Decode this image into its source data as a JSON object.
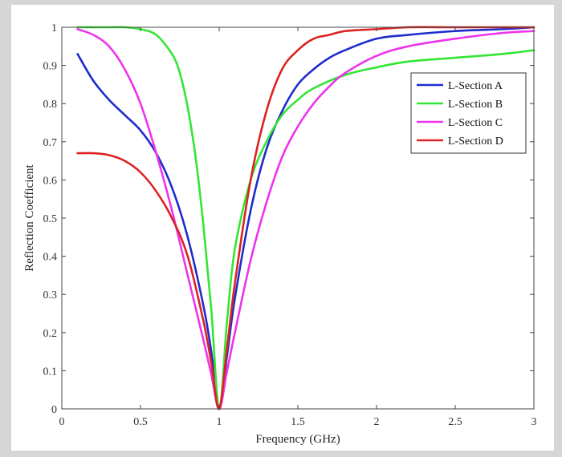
{
  "chart_data": {
    "type": "line",
    "xlabel": "Frequency (GHz)",
    "ylabel": "Reflection Coefficient",
    "xlim": [
      0,
      3
    ],
    "ylim": [
      0,
      1
    ],
    "xticks": [
      0,
      0.5,
      1,
      1.5,
      2,
      2.5,
      3
    ],
    "xtick_labels": [
      "0",
      "0.5",
      "1",
      "1.5",
      "2",
      "2.5",
      "3"
    ],
    "yticks": [
      0,
      0.1,
      0.2,
      0.3,
      0.4,
      0.5,
      0.6,
      0.7,
      0.8,
      0.9,
      1
    ],
    "ytick_labels": [
      "0",
      "0.1",
      "0.2",
      "0.3",
      "0.4",
      "0.5",
      "0.6",
      "0.7",
      "0.8",
      "0.9",
      "1"
    ],
    "grid": false,
    "legend_position": "top-right",
    "series": [
      {
        "name": "L-Section A",
        "color": "#1f2ccc",
        "x": [
          0.1,
          0.2,
          0.3,
          0.4,
          0.5,
          0.6,
          0.7,
          0.8,
          0.9,
          0.95,
          1.0,
          1.05,
          1.1,
          1.2,
          1.3,
          1.4,
          1.5,
          1.6,
          1.7,
          1.8,
          2.0,
          2.2,
          2.5,
          2.8,
          3.0
        ],
        "y": [
          0.93,
          0.86,
          0.81,
          0.77,
          0.73,
          0.67,
          0.58,
          0.45,
          0.27,
          0.15,
          0.0,
          0.14,
          0.29,
          0.52,
          0.68,
          0.78,
          0.85,
          0.89,
          0.92,
          0.94,
          0.97,
          0.98,
          0.99,
          0.995,
          1.0
        ]
      },
      {
        "name": "L-Section B",
        "color": "#33e633",
        "x": [
          0.1,
          0.2,
          0.3,
          0.4,
          0.5,
          0.6,
          0.7,
          0.75,
          0.8,
          0.85,
          0.9,
          0.95,
          1.0,
          1.05,
          1.1,
          1.2,
          1.3,
          1.4,
          1.5,
          1.6,
          1.8,
          2.0,
          2.2,
          2.5,
          2.8,
          3.0
        ],
        "y": [
          1.0,
          1.0,
          1.0,
          1.0,
          0.995,
          0.98,
          0.93,
          0.88,
          0.79,
          0.66,
          0.48,
          0.26,
          0.0,
          0.23,
          0.42,
          0.6,
          0.7,
          0.77,
          0.81,
          0.84,
          0.875,
          0.895,
          0.91,
          0.92,
          0.93,
          0.94
        ]
      },
      {
        "name": "L-Section C",
        "color": "#ee33ee",
        "x": [
          0.1,
          0.2,
          0.3,
          0.4,
          0.5,
          0.6,
          0.7,
          0.8,
          0.9,
          0.95,
          1.0,
          1.05,
          1.1,
          1.2,
          1.3,
          1.4,
          1.5,
          1.6,
          1.7,
          1.8,
          2.0,
          2.2,
          2.5,
          2.8,
          3.0
        ],
        "y": [
          0.995,
          0.98,
          0.95,
          0.89,
          0.8,
          0.67,
          0.52,
          0.35,
          0.18,
          0.09,
          0.0,
          0.1,
          0.2,
          0.39,
          0.54,
          0.66,
          0.74,
          0.8,
          0.845,
          0.88,
          0.925,
          0.95,
          0.97,
          0.985,
          0.99
        ]
      },
      {
        "name": "L-Section D",
        "color": "#dd2222",
        "x": [
          0.1,
          0.2,
          0.3,
          0.4,
          0.5,
          0.6,
          0.7,
          0.8,
          0.9,
          0.95,
          1.0,
          1.05,
          1.1,
          1.2,
          1.3,
          1.4,
          1.5,
          1.6,
          1.7,
          1.8,
          2.0,
          2.2,
          2.5,
          2.8,
          3.0
        ],
        "y": [
          0.67,
          0.67,
          0.665,
          0.65,
          0.62,
          0.57,
          0.5,
          0.4,
          0.23,
          0.12,
          0.0,
          0.16,
          0.33,
          0.6,
          0.78,
          0.89,
          0.94,
          0.97,
          0.98,
          0.99,
          0.995,
          1.0,
          1.0,
          1.0,
          1.0
        ]
      }
    ]
  }
}
